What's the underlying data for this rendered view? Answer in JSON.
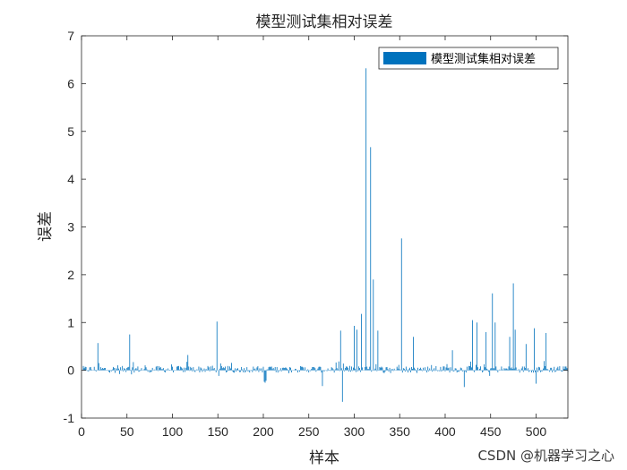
{
  "chart_data": {
    "type": "bar",
    "title": "模型测试集相对误差",
    "xlabel": "样本",
    "ylabel": "误差",
    "xlim": [
      0,
      535
    ],
    "ylim": [
      -1,
      7
    ],
    "xticks": [
      0,
      50,
      100,
      150,
      200,
      250,
      300,
      350,
      400,
      450,
      500
    ],
    "yticks": [
      -1,
      0,
      1,
      2,
      3,
      4,
      5,
      6,
      7
    ],
    "legend": {
      "placement": "top-right",
      "entries": [
        "模型测试集相对误差"
      ]
    },
    "series_color": "#0072BD",
    "grid": false,
    "notable_points": [
      {
        "x": 18,
        "y": 0.57
      },
      {
        "x": 53,
        "y": 0.75
      },
      {
        "x": 117,
        "y": 0.32
      },
      {
        "x": 149,
        "y": 1.02
      },
      {
        "x": 201,
        "y": -0.24
      },
      {
        "x": 202,
        "y": -0.26
      },
      {
        "x": 203,
        "y": -0.22
      },
      {
        "x": 265,
        "y": -0.33
      },
      {
        "x": 285,
        "y": 0.83
      },
      {
        "x": 287,
        "y": -0.66
      },
      {
        "x": 300,
        "y": 0.93
      },
      {
        "x": 303,
        "y": 0.85
      },
      {
        "x": 308,
        "y": 1.18
      },
      {
        "x": 313,
        "y": 6.32
      },
      {
        "x": 318,
        "y": 4.67
      },
      {
        "x": 321,
        "y": 1.9
      },
      {
        "x": 326,
        "y": 0.83
      },
      {
        "x": 352,
        "y": 2.76
      },
      {
        "x": 365,
        "y": 0.7
      },
      {
        "x": 408,
        "y": 0.42
      },
      {
        "x": 421,
        "y": -0.35
      },
      {
        "x": 430,
        "y": 1.05
      },
      {
        "x": 435,
        "y": 1.0
      },
      {
        "x": 445,
        "y": 0.8
      },
      {
        "x": 452,
        "y": 1.61
      },
      {
        "x": 455,
        "y": 1.0
      },
      {
        "x": 471,
        "y": 0.7
      },
      {
        "x": 475,
        "y": 1.82
      },
      {
        "x": 477,
        "y": 0.85
      },
      {
        "x": 489,
        "y": 0.55
      },
      {
        "x": 498,
        "y": 0.88
      },
      {
        "x": 500,
        "y": -0.28
      },
      {
        "x": 511,
        "y": 0.78
      }
    ]
  },
  "watermark": "CSDN @机器学习之心"
}
